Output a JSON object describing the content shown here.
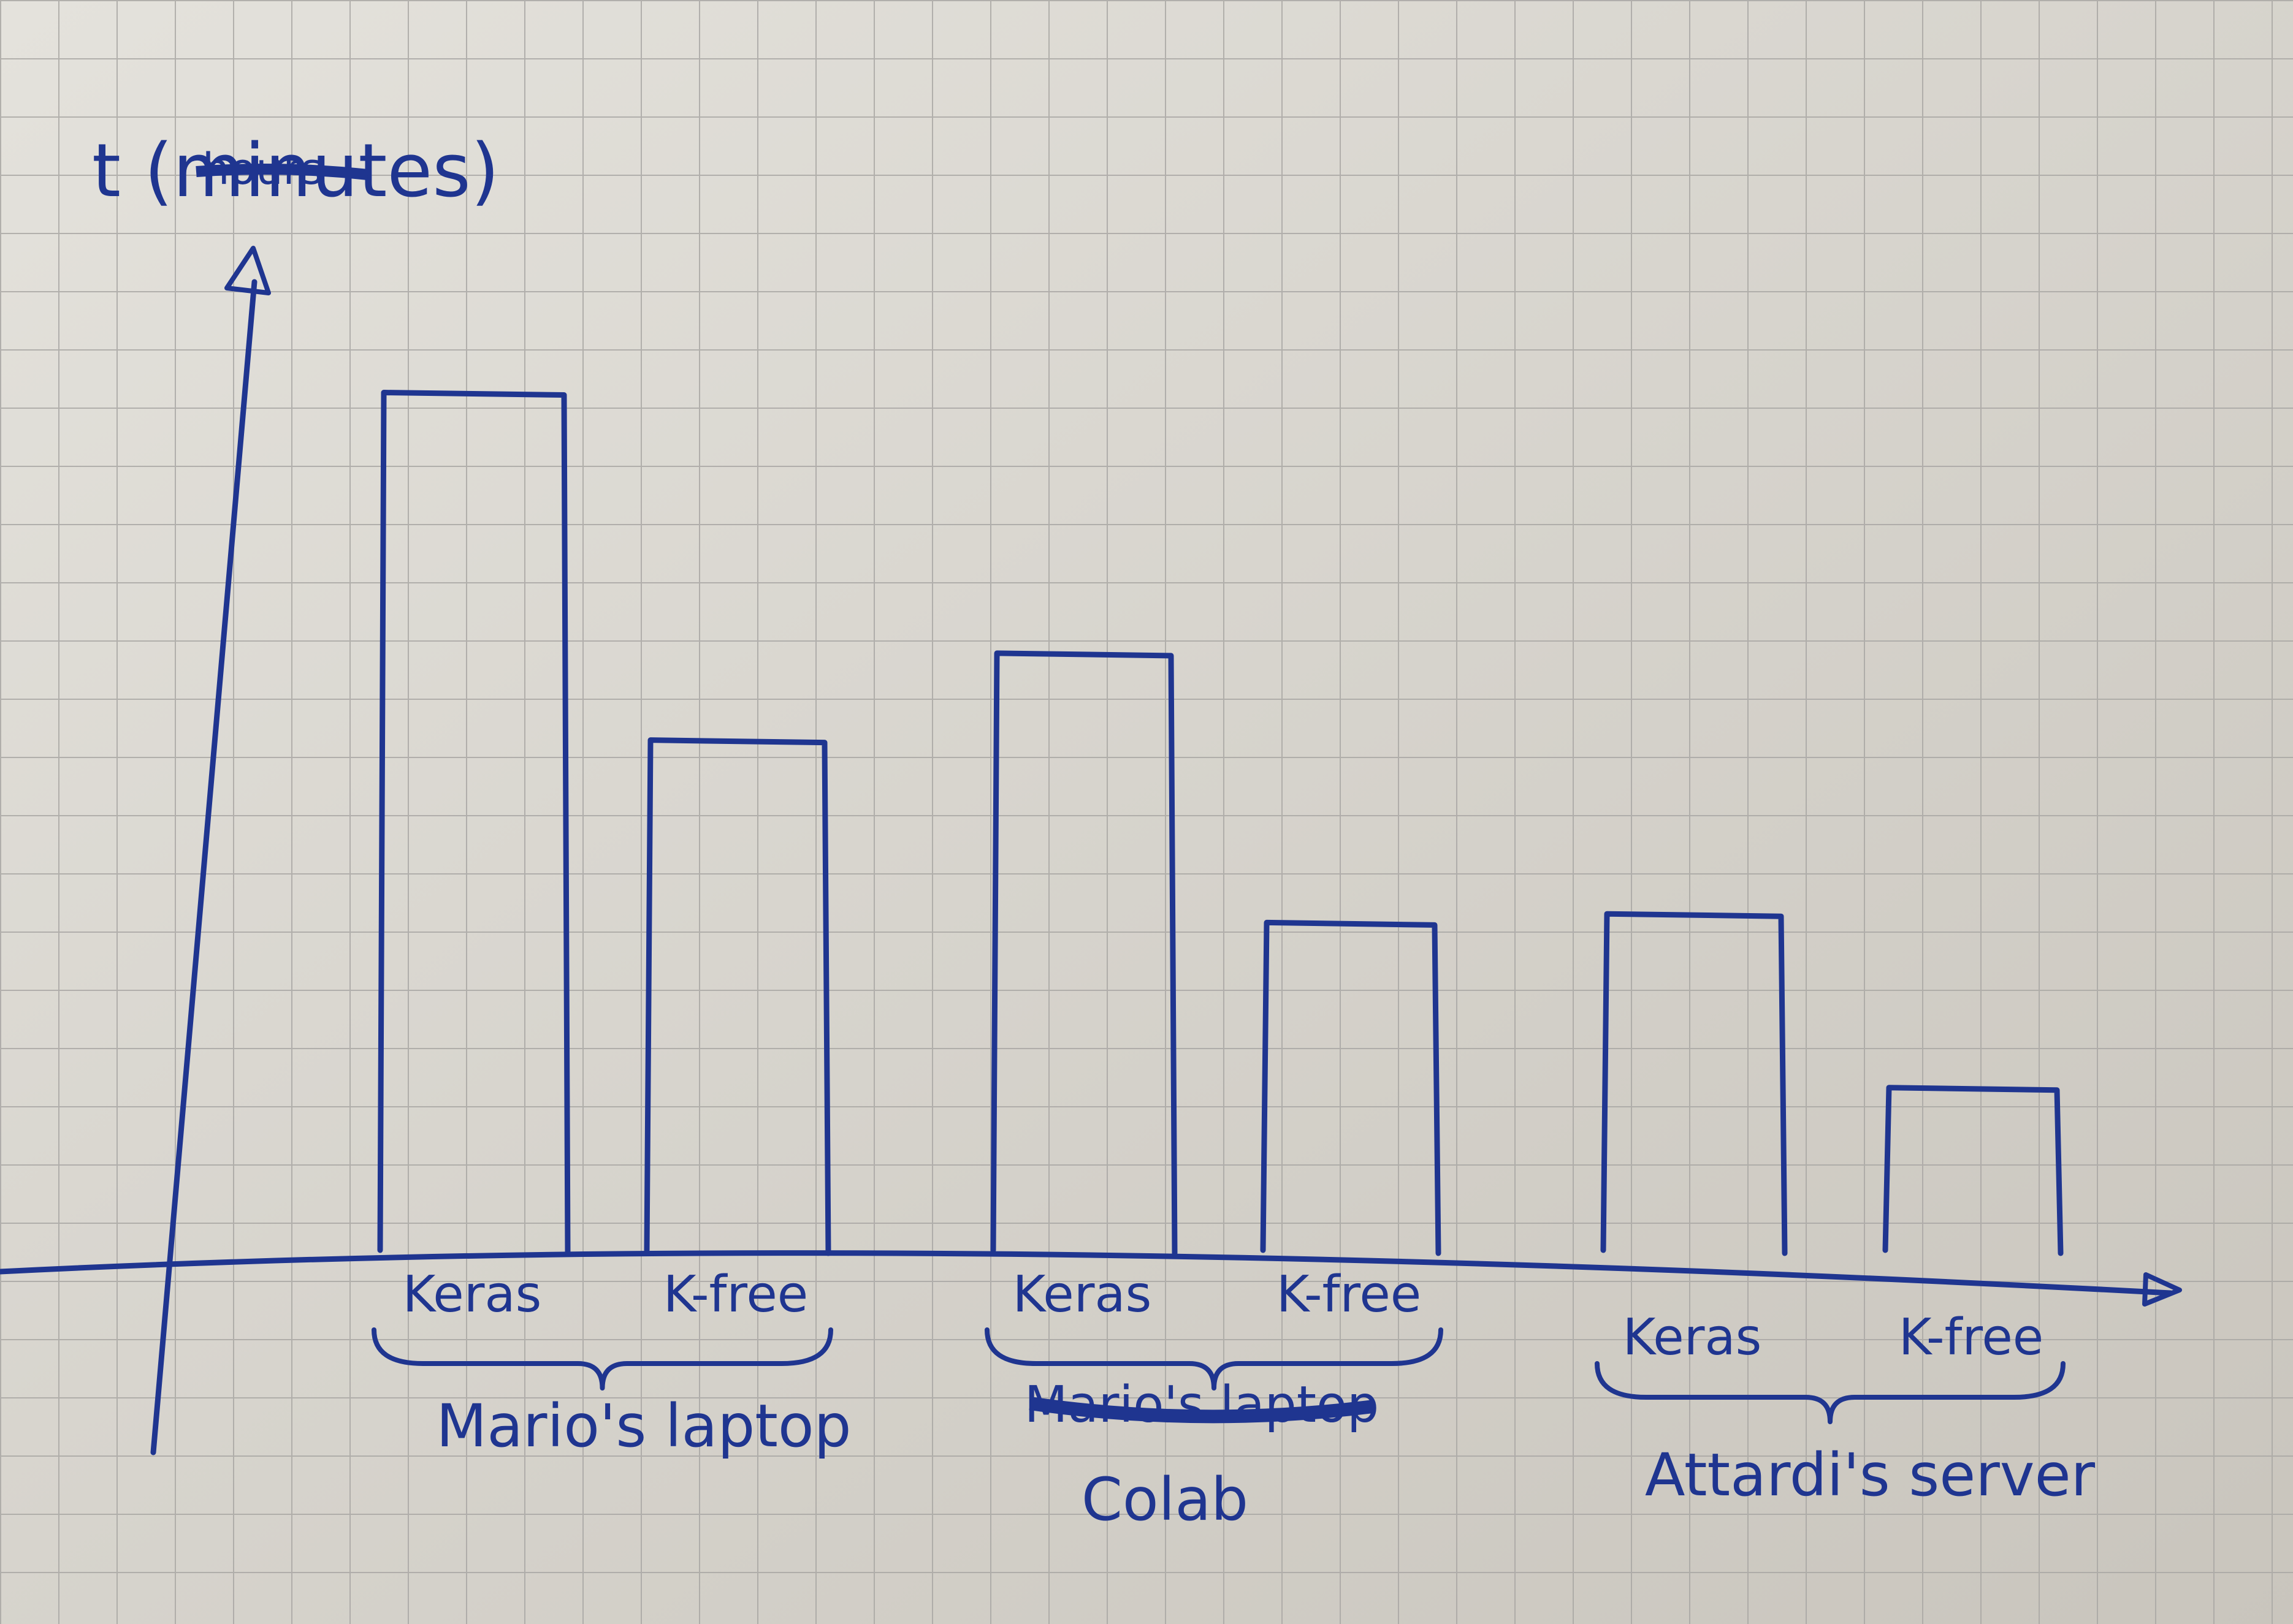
{
  "chart_data": {
    "type": "bar",
    "title": "",
    "ylabel": "t (minutes)",
    "ylabel_struck": "hours",
    "xlabel": "",
    "y_units": "relative height (y-axis has no ticks)",
    "ylim": [
      0,
      10
    ],
    "grid": true,
    "legend": "none",
    "categories": [
      "Keras",
      "K-free",
      "Keras",
      "K-free",
      "Keras",
      "K-free"
    ],
    "values": [
      9.8,
      5.8,
      6.8,
      3.7,
      3.8,
      1.8
    ],
    "groups": [
      {
        "label": "Mario's laptop",
        "struck_label": "",
        "bars": [
          0,
          1
        ]
      },
      {
        "label": "Colab",
        "struck_label": "Mario's laptop",
        "bars": [
          2,
          3
        ]
      },
      {
        "label": "Attardi's server",
        "struck_label": "",
        "bars": [
          4,
          5
        ]
      }
    ]
  },
  "colors": {
    "ink": "#1f3590",
    "paper": "#dcd9d2",
    "grid": "#a9a7a4"
  }
}
